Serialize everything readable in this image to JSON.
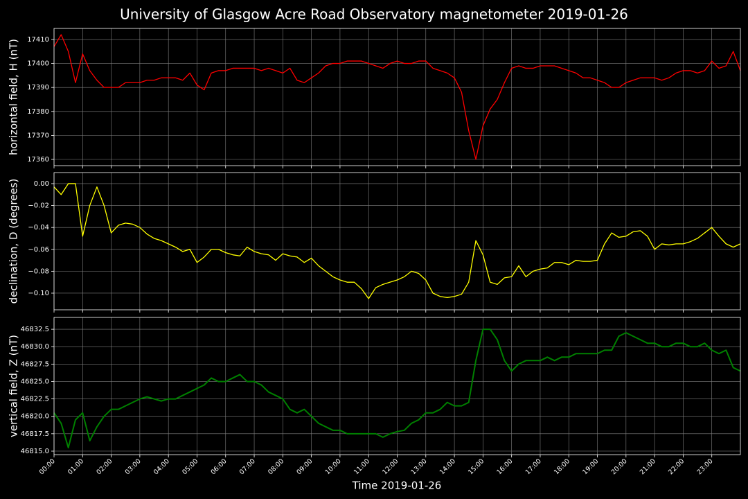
{
  "chart_data": [
    {
      "type": "line",
      "title": "University of Glasgow Acre Road Observatory magnetometer 2019-01-26",
      "ylabel": "horizontal field, H (nT)",
      "color": "#ff0000",
      "grid": true,
      "x": [
        0,
        0.25,
        0.5,
        0.75,
        1,
        1.25,
        1.5,
        1.75,
        2,
        2.25,
        2.5,
        2.75,
        3,
        3.25,
        3.5,
        3.75,
        4,
        4.25,
        4.5,
        4.75,
        5,
        5.25,
        5.5,
        5.75,
        6,
        6.25,
        6.5,
        6.75,
        7,
        7.25,
        7.5,
        7.75,
        8,
        8.25,
        8.5,
        8.75,
        9,
        9.25,
        9.5,
        9.75,
        10,
        10.25,
        10.5,
        10.75,
        11,
        11.25,
        11.5,
        11.75,
        12,
        12.25,
        12.5,
        12.75,
        13,
        13.25,
        13.5,
        13.75,
        14,
        14.25,
        14.5,
        14.75,
        15,
        15.25,
        15.5,
        15.75,
        16,
        16.25,
        16.5,
        16.75,
        17,
        17.25,
        17.5,
        17.75,
        18,
        18.25,
        18.5,
        18.75,
        19,
        19.25,
        19.5,
        19.75,
        20,
        20.25,
        20.5,
        20.75,
        21,
        21.25,
        21.5,
        21.75,
        22,
        22.25,
        22.5,
        22.75,
        23,
        23.25,
        23.5,
        23.75,
        24
      ],
      "values": [
        17407,
        17412,
        17405,
        17392,
        17404,
        17397,
        17393,
        17390,
        17390,
        17390,
        17392,
        17392,
        17392,
        17393,
        17393,
        17394,
        17394,
        17394,
        17393,
        17396,
        17391,
        17389,
        17396,
        17397,
        17397,
        17398,
        17398,
        17398,
        17398,
        17397,
        17398,
        17397,
        17396,
        17398,
        17393,
        17392,
        17394,
        17396,
        17399,
        17400,
        17400,
        17401,
        17401,
        17401,
        17400,
        17399,
        17398,
        17400,
        17401,
        17400,
        17400,
        17401,
        17401,
        17398,
        17397,
        17396,
        17394,
        17388,
        17372,
        17360,
        17374,
        17381,
        17385,
        17392,
        17398,
        17399,
        17398,
        17398,
        17399,
        17399,
        17399,
        17398,
        17397,
        17396,
        17394,
        17394,
        17393,
        17392,
        17390,
        17390,
        17392,
        17393,
        17394,
        17394,
        17394,
        17393,
        17394,
        17396,
        17397,
        17397,
        17396,
        17397,
        17401,
        17398,
        17399,
        17405,
        17397
      ],
      "xlim": [
        0,
        24
      ],
      "ylim": [
        17357.4,
        17414.6
      ],
      "yticks": [
        17360,
        17370,
        17380,
        17390,
        17400,
        17410
      ]
    },
    {
      "type": "line",
      "ylabel": "declination, D (degrees)",
      "color": "#ffff00",
      "grid": true,
      "x": [
        0,
        0.25,
        0.5,
        0.75,
        1,
        1.25,
        1.5,
        1.75,
        2,
        2.25,
        2.5,
        2.75,
        3,
        3.25,
        3.5,
        3.75,
        4,
        4.25,
        4.5,
        4.75,
        5,
        5.25,
        5.5,
        5.75,
        6,
        6.25,
        6.5,
        6.75,
        7,
        7.25,
        7.5,
        7.75,
        8,
        8.25,
        8.5,
        8.75,
        9,
        9.25,
        9.5,
        9.75,
        10,
        10.25,
        10.5,
        10.75,
        11,
        11.25,
        11.5,
        11.75,
        12,
        12.25,
        12.5,
        12.75,
        13,
        13.25,
        13.5,
        13.75,
        14,
        14.25,
        14.5,
        14.75,
        15,
        15.25,
        15.5,
        15.75,
        16,
        16.25,
        16.5,
        16.75,
        17,
        17.25,
        17.5,
        17.75,
        18,
        18.25,
        18.5,
        18.75,
        19,
        19.25,
        19.5,
        19.75,
        20,
        20.25,
        20.5,
        20.75,
        21,
        21.25,
        21.5,
        21.75,
        22,
        22.25,
        22.5,
        22.75,
        23,
        23.25,
        23.5,
        23.75,
        24
      ],
      "values": [
        -0.003,
        -0.01,
        0.0,
        0.0,
        -0.048,
        -0.02,
        -0.003,
        -0.02,
        -0.045,
        -0.038,
        -0.036,
        -0.037,
        -0.04,
        -0.046,
        -0.05,
        -0.052,
        -0.055,
        -0.058,
        -0.062,
        -0.06,
        -0.072,
        -0.067,
        -0.06,
        -0.06,
        -0.063,
        -0.065,
        -0.066,
        -0.058,
        -0.062,
        -0.064,
        -0.065,
        -0.07,
        -0.064,
        -0.066,
        -0.067,
        -0.072,
        -0.068,
        -0.075,
        -0.08,
        -0.085,
        -0.088,
        -0.09,
        -0.09,
        -0.096,
        -0.105,
        -0.095,
        -0.092,
        -0.09,
        -0.088,
        -0.085,
        -0.08,
        -0.082,
        -0.088,
        -0.1,
        -0.103,
        -0.104,
        -0.103,
        -0.101,
        -0.09,
        -0.052,
        -0.065,
        -0.09,
        -0.092,
        -0.086,
        -0.085,
        -0.075,
        -0.085,
        -0.08,
        -0.078,
        -0.077,
        -0.072,
        -0.072,
        -0.074,
        -0.07,
        -0.071,
        -0.071,
        -0.07,
        -0.055,
        -0.045,
        -0.049,
        -0.048,
        -0.044,
        -0.043,
        -0.048,
        -0.06,
        -0.055,
        -0.056,
        -0.055,
        -0.055,
        -0.053,
        -0.05,
        -0.045,
        -0.04,
        -0.048,
        -0.055,
        -0.058,
        -0.055
      ],
      "xlim": [
        0,
        24
      ],
      "ylim": [
        -0.1152,
        0.0101
      ],
      "yticks": [
        {
          "value": -0.1,
          "label": "−0.10"
        },
        {
          "value": -0.08,
          "label": "−0.08"
        },
        {
          "value": -0.06,
          "label": "−0.06"
        },
        {
          "value": -0.04,
          "label": "−0.04"
        },
        {
          "value": -0.02,
          "label": "−0.02"
        },
        {
          "value": 0,
          "label": "0.00"
        }
      ]
    },
    {
      "type": "line",
      "ylabel": "vertical field, Z (nT)",
      "xlabel": "Time 2019-01-26",
      "color": "#008000",
      "grid": true,
      "x": [
        0,
        0.25,
        0.5,
        0.75,
        1,
        1.25,
        1.5,
        1.75,
        2,
        2.25,
        2.5,
        2.75,
        3,
        3.25,
        3.5,
        3.75,
        4,
        4.25,
        4.5,
        4.75,
        5,
        5.25,
        5.5,
        5.75,
        6,
        6.25,
        6.5,
        6.75,
        7,
        7.25,
        7.5,
        7.75,
        8,
        8.25,
        8.5,
        8.75,
        9,
        9.25,
        9.5,
        9.75,
        10,
        10.25,
        10.5,
        10.75,
        11,
        11.25,
        11.5,
        11.75,
        12,
        12.25,
        12.5,
        12.75,
        13,
        13.25,
        13.5,
        13.75,
        14,
        14.25,
        14.5,
        14.75,
        15,
        15.25,
        15.5,
        15.75,
        16,
        16.25,
        16.5,
        16.75,
        17,
        17.25,
        17.5,
        17.75,
        18,
        18.25,
        18.5,
        18.75,
        19,
        19.25,
        19.5,
        19.75,
        20,
        20.25,
        20.5,
        20.75,
        21,
        21.25,
        21.5,
        21.75,
        22,
        22.25,
        22.5,
        22.75,
        23,
        23.25,
        23.5,
        23.75,
        24
      ],
      "values": [
        46820.5,
        46819,
        46815.5,
        46819.5,
        46820.5,
        46816.5,
        46818.5,
        46820,
        46821,
        46821,
        46821.5,
        46822,
        46822.5,
        46822.8,
        46822.5,
        46822.2,
        46822.5,
        46822.5,
        46823,
        46823.5,
        46824,
        46824.5,
        46825.5,
        46825,
        46825,
        46825.5,
        46826,
        46825,
        46825,
        46824.5,
        46823.5,
        46823,
        46822.5,
        46821,
        46820.5,
        46821,
        46820,
        46819,
        46818.5,
        46818,
        46818,
        46817.5,
        46817.5,
        46817.5,
        46817.5,
        46817.5,
        46817,
        46817.5,
        46817.8,
        46818,
        46819,
        46819.5,
        46820.5,
        46820.5,
        46821,
        46822,
        46821.5,
        46821.5,
        46822,
        46828,
        46832.5,
        46832.5,
        46831,
        46828,
        46826.5,
        46827.5,
        46828,
        46828,
        46828,
        46828.5,
        46828,
        46828.5,
        46828.5,
        46829,
        46829,
        46829,
        46829,
        46829.5,
        46829.5,
        46831.5,
        46832,
        46831.5,
        46831,
        46830.5,
        46830.5,
        46830,
        46830,
        46830.5,
        46830.5,
        46830,
        46830,
        46830.5,
        46829.5,
        46829,
        46829.5,
        46827,
        46826.5
      ],
      "xlim": [
        0,
        24
      ],
      "ylim": [
        46814.5,
        46834.2
      ],
      "yticks": [
        {
          "value": 46815,
          "label": "46815.0"
        },
        46817.5,
        {
          "value": 46820,
          "label": "46820.0"
        },
        46822.5,
        {
          "value": 46825,
          "label": "46825.0"
        },
        46827.5,
        {
          "value": 46830,
          "label": "46830.0"
        },
        46832.5
      ],
      "xticks": [
        {
          "value": 0,
          "label": "00:00"
        },
        {
          "value": 1,
          "label": "01:00"
        },
        {
          "value": 2,
          "label": "02:00"
        },
        {
          "value": 3,
          "label": "03:00"
        },
        {
          "value": 4,
          "label": "04:00"
        },
        {
          "value": 5,
          "label": "05:00"
        },
        {
          "value": 6,
          "label": "06:00"
        },
        {
          "value": 7,
          "label": "07:00"
        },
        {
          "value": 8,
          "label": "08:00"
        },
        {
          "value": 9,
          "label": "09:00"
        },
        {
          "value": 10,
          "label": "10:00"
        },
        {
          "value": 11,
          "label": "11:00"
        },
        {
          "value": 12,
          "label": "12:00"
        },
        {
          "value": 13,
          "label": "13:00"
        },
        {
          "value": 14,
          "label": "14:00"
        },
        {
          "value": 15,
          "label": "15:00"
        },
        {
          "value": 16,
          "label": "16:00"
        },
        {
          "value": 17,
          "label": "17:00"
        },
        {
          "value": 18,
          "label": "18:00"
        },
        {
          "value": 19,
          "label": "19:00"
        },
        {
          "value": 20,
          "label": "20:00"
        },
        {
          "value": 21,
          "label": "21:00"
        },
        {
          "value": 22,
          "label": "22:00"
        },
        {
          "value": 23,
          "label": "23:00"
        }
      ]
    }
  ]
}
